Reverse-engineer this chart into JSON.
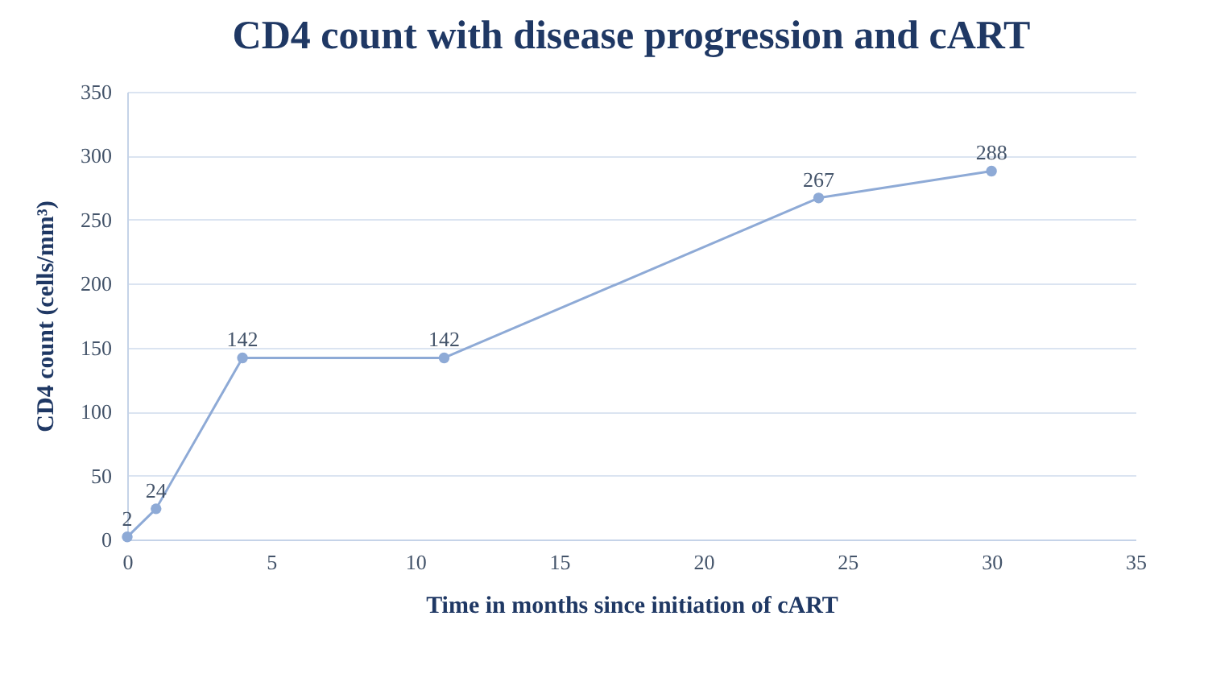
{
  "chart_data": {
    "type": "line",
    "title": "CD4 count with disease progression and cART",
    "xlabel": "Time in months since initiation of cART",
    "ylabel": "CD4 count (cells/mm³)",
    "x": [
      0,
      1,
      4,
      11,
      24,
      30
    ],
    "series": [
      {
        "color": "#8eaad6",
        "values": [
          2,
          24,
          142,
          142,
          267,
          288
        ]
      }
    ],
    "xlim": [
      0,
      35
    ],
    "xticks": [
      0,
      5,
      10,
      15,
      20,
      25,
      30,
      35
    ],
    "ylim": [
      0,
      350
    ],
    "yticks": [
      0,
      50,
      100,
      150,
      200,
      250,
      300,
      350
    ],
    "grid": "y",
    "marker": "circle",
    "line_style": "solid",
    "data_labels": true,
    "legend": false
  }
}
